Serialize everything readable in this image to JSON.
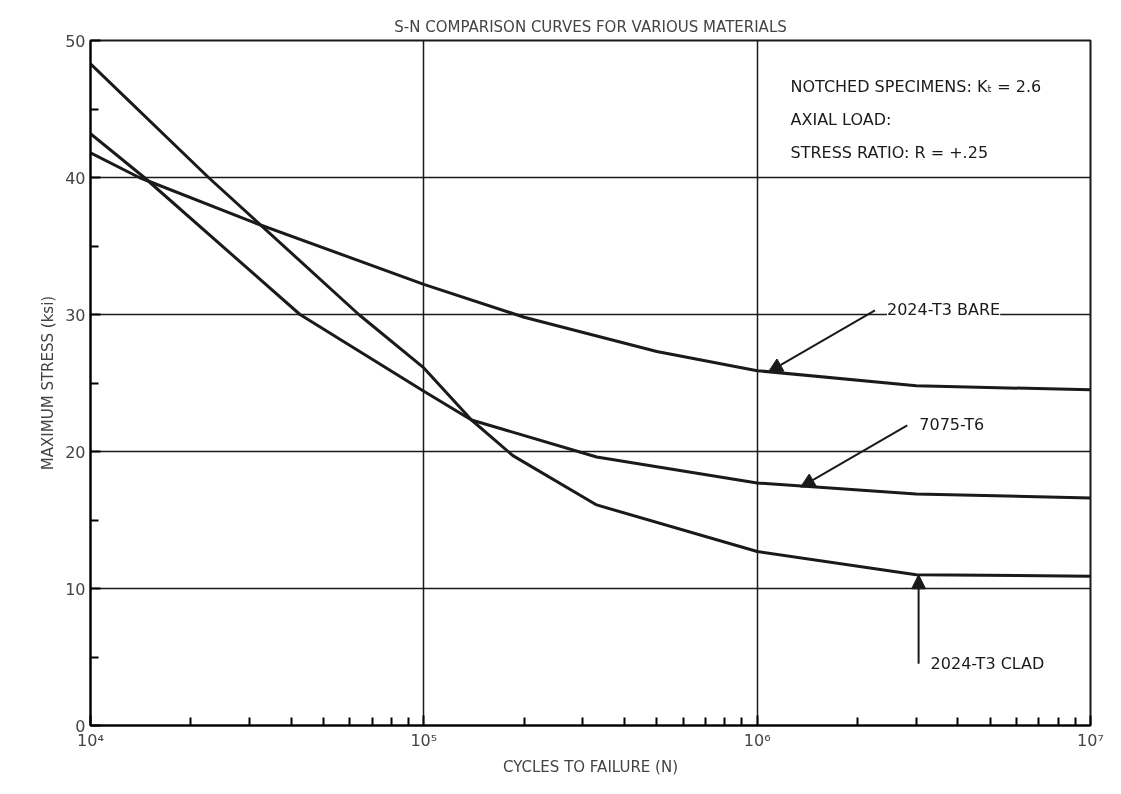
{
  "chart_data": {
    "type": "line",
    "title": "S-N COMPARISON CURVES FOR VARIOUS MATERIALS",
    "xlabel": "CYCLES TO FAILURE (N)",
    "ylabel": "MAXIMUM STRESS (ksi)",
    "log": "x",
    "grid": true,
    "marker": "none",
    "line_style": "solid",
    "xlim": [
      10000,
      10000000
    ],
    "ylim": [
      0,
      50
    ],
    "xticks": [
      {
        "value": 10000,
        "label": "10⁴"
      },
      {
        "value": 100000,
        "label": "10⁵"
      },
      {
        "value": 1000000,
        "label": "10⁶"
      },
      {
        "value": 10000000,
        "label": "10⁷"
      }
    ],
    "yticks": [
      0,
      {
        "value": 5,
        "label": null
      },
      10,
      {
        "value": 15,
        "label": null
      },
      20,
      {
        "value": 25,
        "label": null
      },
      30,
      {
        "value": 35,
        "label": null
      },
      40,
      {
        "value": 45,
        "label": null
      },
      50
    ],
    "series": [
      {
        "color": "#1a1a1a",
        "x": [
          10000,
          14000,
          31000,
          100000,
          200000,
          500000,
          1000000,
          3000000,
          10000000
        ],
        "values": [
          41.8,
          40.0,
          36.7,
          32.2,
          29.8,
          27.3,
          25.9,
          24.8,
          24.5
        ]
      },
      {
        "color": "#1a1a1a",
        "x": [
          10000,
          14500,
          42500,
          100000,
          139000,
          330000,
          1000000,
          3000000,
          10000000
        ],
        "values": [
          43.2,
          40.0,
          30.0,
          24.4,
          22.3,
          19.6,
          17.7,
          16.9,
          16.6
        ]
      },
      {
        "color": "#1a1a1a",
        "x": [
          10000,
          22600,
          63800,
          100000,
          139000,
          185000,
          330000,
          1000000,
          3000000,
          10000000
        ],
        "values": [
          48.3,
          40.0,
          30.0,
          26.1,
          22.3,
          19.7,
          16.1,
          12.7,
          11.0,
          10.9
        ]
      }
    ],
    "annotations": [
      "NOTCHED SPECIMENS:  Kₜ = 2.6",
      "AXIAL LOAD:",
      "STRESS RATIO:  R = +.25",
      {
        "text": "2024-T3 BARE",
        "x": 1080000,
        "y": 25.8
      },
      {
        "text": "7075-T6",
        "x": 1350000,
        "y": 17.4
      },
      {
        "text": "2024-T3 CLAD",
        "x": 3050000,
        "y": 11.0
      }
    ]
  }
}
